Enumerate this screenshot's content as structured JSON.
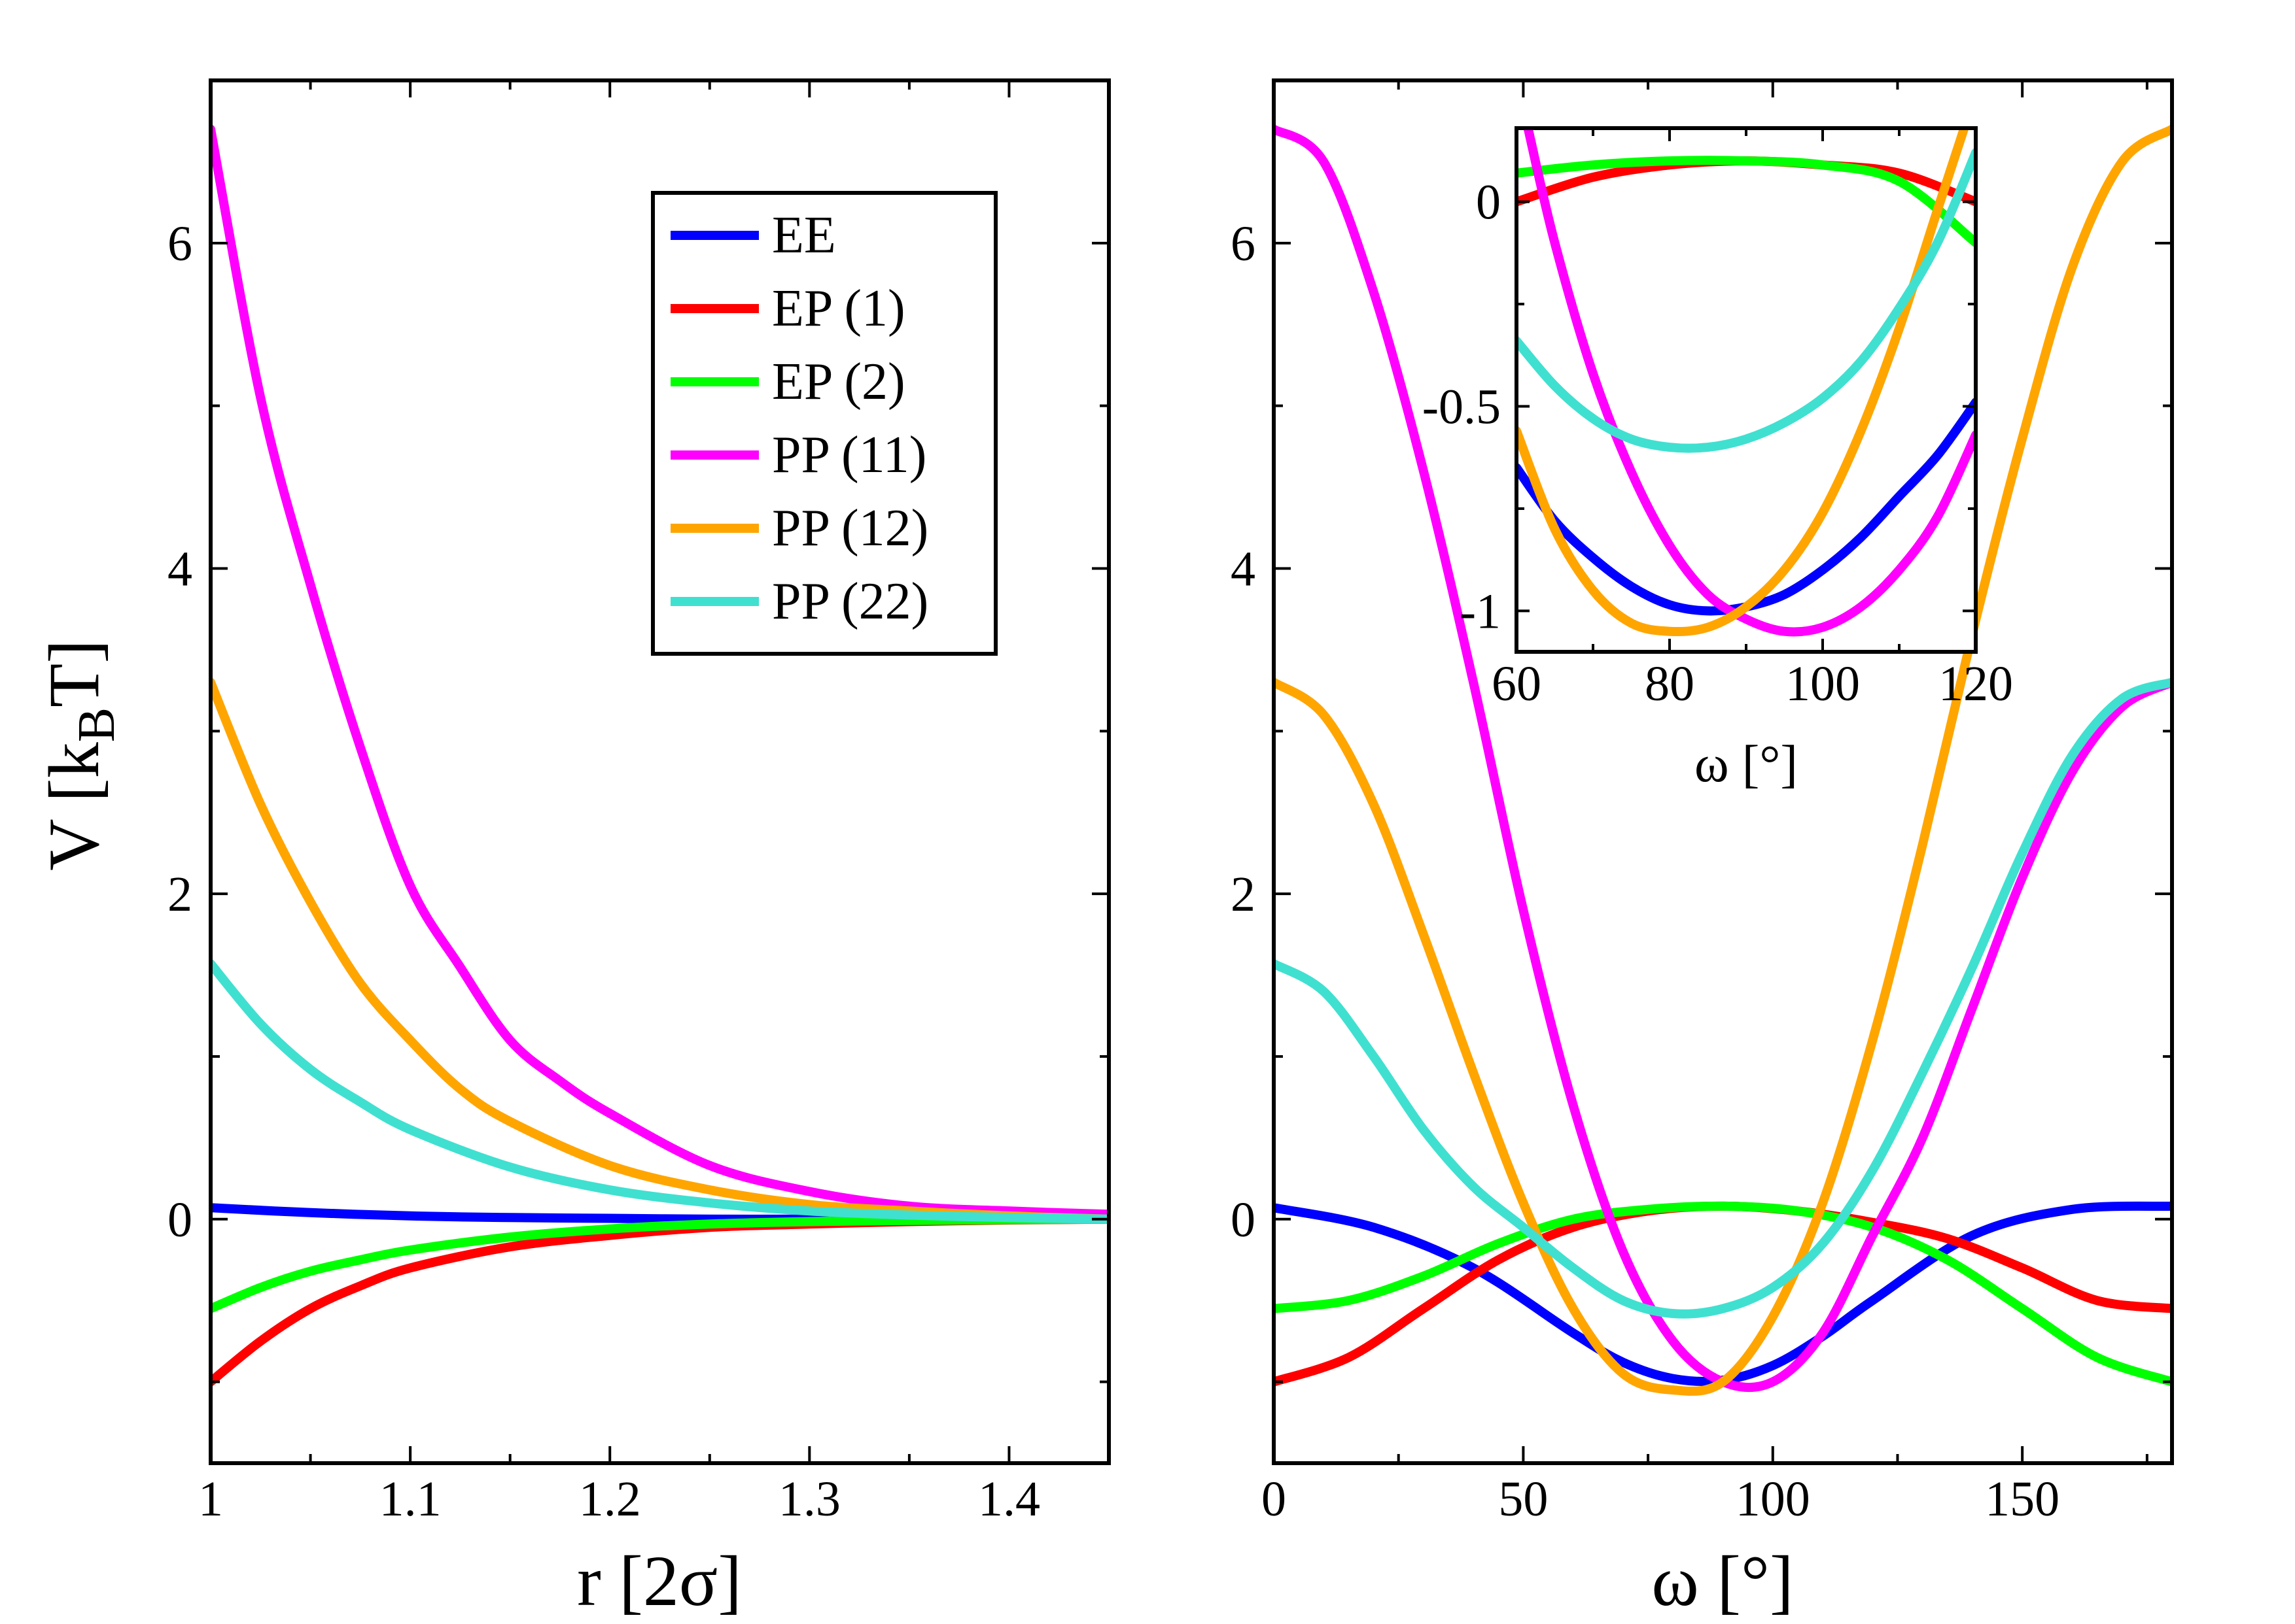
{
  "chart_data": [
    {
      "type": "line",
      "id": "left",
      "xlabel": "r [2σ]",
      "ylabel_main": "V [k",
      "ylabel_sub": "B",
      "ylabel_end": "T]",
      "xlim": [
        1.0,
        1.45
      ],
      "ylim": [
        -1.5,
        7.0
      ],
      "xticks": [
        1.0,
        1.1,
        1.2,
        1.3,
        1.4
      ],
      "xtick_labels": [
        "1",
        "1.1",
        "1.2",
        "1.3",
        "1.4"
      ],
      "yticks": [
        0,
        2,
        4,
        6
      ],
      "ytick_labels": [
        "0",
        "2",
        "4",
        "6"
      ],
      "legend": {
        "position": "top-right",
        "entries": [
          {
            "name": "EE",
            "color": "#0000ff"
          },
          {
            "name": "EP (1)",
            "color": "#ff0000"
          },
          {
            "name": "EP (2)",
            "color": "#00ff00"
          },
          {
            "name": "PP (11)",
            "color": "#ff00ff"
          },
          {
            "name": "PP (12)",
            "color": "#ffa500"
          },
          {
            "name": "PP (22)",
            "color": "#40e0d0"
          }
        ]
      },
      "series": [
        {
          "name": "EE",
          "color": "#0000ff",
          "x": [
            1.0,
            1.05,
            1.1,
            1.15,
            1.2,
            1.25,
            1.3,
            1.35,
            1.4,
            1.45
          ],
          "values": [
            0.07,
            0.04,
            0.02,
            0.01,
            0.005,
            0.0,
            0.0,
            0.0,
            0.0,
            0.0
          ]
        },
        {
          "name": "EP (1)",
          "color": "#ff0000",
          "x": [
            1.0,
            1.025,
            1.05,
            1.075,
            1.1,
            1.15,
            1.2,
            1.25,
            1.3,
            1.35,
            1.4,
            1.45
          ],
          "values": [
            -1.0,
            -0.75,
            -0.55,
            -0.41,
            -0.3,
            -0.17,
            -0.1,
            -0.05,
            -0.03,
            -0.015,
            -0.005,
            0.0
          ]
        },
        {
          "name": "EP (2)",
          "color": "#00ff00",
          "x": [
            1.0,
            1.025,
            1.05,
            1.075,
            1.1,
            1.15,
            1.2,
            1.25,
            1.3,
            1.35,
            1.4,
            1.45
          ],
          "values": [
            -0.55,
            -0.42,
            -0.32,
            -0.25,
            -0.19,
            -0.11,
            -0.06,
            -0.03,
            -0.015,
            -0.008,
            -0.003,
            0.0
          ]
        },
        {
          "name": "PP (11)",
          "color": "#ff00ff",
          "x": [
            1.0,
            1.025,
            1.05,
            1.075,
            1.1,
            1.125,
            1.15,
            1.175,
            1.2,
            1.25,
            1.3,
            1.35,
            1.4,
            1.45
          ],
          "values": [
            6.7,
            5.05,
            3.9,
            2.9,
            2.05,
            1.55,
            1.1,
            0.85,
            0.65,
            0.33,
            0.17,
            0.08,
            0.05,
            0.03
          ]
        },
        {
          "name": "PP (12)",
          "color": "#ffa500",
          "x": [
            1.0,
            1.025,
            1.05,
            1.075,
            1.1,
            1.125,
            1.15,
            1.2,
            1.25,
            1.3,
            1.35,
            1.4,
            1.45
          ],
          "values": [
            3.3,
            2.55,
            1.95,
            1.45,
            1.1,
            0.8,
            0.6,
            0.33,
            0.18,
            0.09,
            0.05,
            0.02,
            0.0
          ]
        },
        {
          "name": "PP (22)",
          "color": "#40e0d0",
          "x": [
            1.0,
            1.025,
            1.05,
            1.075,
            1.1,
            1.15,
            1.2,
            1.25,
            1.3,
            1.35,
            1.4,
            1.45
          ],
          "values": [
            1.57,
            1.2,
            0.92,
            0.72,
            0.55,
            0.32,
            0.18,
            0.1,
            0.05,
            0.025,
            0.01,
            0.0
          ]
        }
      ]
    },
    {
      "type": "line",
      "id": "right",
      "xlabel": "ω [°]",
      "xlim": [
        0,
        180
      ],
      "ylim": [
        -1.5,
        7.0
      ],
      "xticks": [
        0,
        50,
        100,
        150
      ],
      "xtick_labels": [
        "0",
        "50",
        "100",
        "150"
      ],
      "yticks": [
        0,
        2,
        4,
        6
      ],
      "ytick_labels": [
        "0",
        "2",
        "4",
        "6"
      ],
      "series": [
        {
          "name": "EE",
          "color": "#0000ff",
          "x": [
            0,
            20,
            40,
            60,
            70,
            80,
            90,
            100,
            110,
            120,
            140,
            160,
            180
          ],
          "values": [
            0.07,
            -0.05,
            -0.3,
            -0.7,
            -0.88,
            -0.98,
            -0.99,
            -0.9,
            -0.72,
            -0.5,
            -0.1,
            0.06,
            0.08
          ]
        },
        {
          "name": "EP (1)",
          "color": "#ff0000",
          "x": [
            0,
            15,
            30,
            45,
            60,
            75,
            90,
            105,
            120,
            135,
            150,
            165,
            180
          ],
          "values": [
            -1.0,
            -0.85,
            -0.55,
            -0.25,
            -0.05,
            0.05,
            0.08,
            0.05,
            -0.02,
            -0.12,
            -0.3,
            -0.5,
            -0.55
          ]
        },
        {
          "name": "EP (2)",
          "color": "#00ff00",
          "x": [
            0,
            15,
            30,
            45,
            60,
            75,
            90,
            105,
            120,
            135,
            150,
            165,
            180
          ],
          "values": [
            -0.55,
            -0.5,
            -0.35,
            -0.15,
            0.0,
            0.06,
            0.08,
            0.05,
            -0.05,
            -0.25,
            -0.55,
            -0.85,
            -1.0
          ]
        },
        {
          "name": "PP (11)",
          "color": "#ff00ff",
          "x": [
            0,
            10,
            20,
            30,
            40,
            50,
            60,
            70,
            80,
            90,
            100,
            110,
            120,
            130,
            140,
            150,
            160,
            170,
            180
          ],
          "values": [
            6.7,
            6.5,
            5.7,
            4.6,
            3.3,
            1.9,
            0.7,
            -0.2,
            -0.75,
            -1.0,
            -1.0,
            -0.7,
            -0.1,
            0.5,
            1.3,
            2.1,
            2.75,
            3.15,
            3.3
          ]
        },
        {
          "name": "PP (12)",
          "color": "#ffa500",
          "x": [
            0,
            10,
            20,
            30,
            40,
            50,
            60,
            70,
            80,
            90,
            100,
            110,
            120,
            130,
            140,
            150,
            160,
            170,
            180
          ],
          "values": [
            3.3,
            3.1,
            2.55,
            1.75,
            0.9,
            0.1,
            -0.55,
            -0.95,
            -1.05,
            -1.0,
            -0.6,
            0.1,
            1.1,
            2.3,
            3.6,
            4.8,
            5.85,
            6.5,
            6.7
          ]
        },
        {
          "name": "PP (22)",
          "color": "#40e0d0",
          "x": [
            0,
            10,
            20,
            30,
            40,
            50,
            60,
            70,
            80,
            90,
            100,
            110,
            120,
            130,
            140,
            150,
            160,
            170,
            180
          ],
          "values": [
            1.57,
            1.4,
            1.0,
            0.55,
            0.2,
            -0.05,
            -0.3,
            -0.5,
            -0.58,
            -0.55,
            -0.42,
            -0.15,
            0.3,
            0.9,
            1.55,
            2.25,
            2.85,
            3.2,
            3.3
          ]
        }
      ]
    },
    {
      "type": "line",
      "id": "inset",
      "xlabel": "ω [°]",
      "xlim": [
        60,
        120
      ],
      "ylim": [
        -1.1,
        0.18
      ],
      "xticks": [
        60,
        80,
        100,
        120
      ],
      "xtick_labels": [
        "60",
        "80",
        "100",
        "120"
      ],
      "yticks": [
        -1.0,
        -0.5,
        0.0
      ],
      "ytick_labels": [
        "-1",
        "-0.5",
        "0"
      ],
      "series": [
        {
          "name": "EE",
          "color": "#0000ff",
          "x": [
            60,
            65,
            70,
            75,
            80,
            85,
            90,
            95,
            100,
            105,
            110,
            115,
            120
          ],
          "values": [
            -0.65,
            -0.78,
            -0.87,
            -0.94,
            -0.985,
            -1.0,
            -0.99,
            -0.96,
            -0.9,
            -0.82,
            -0.72,
            -0.62,
            -0.49
          ]
        },
        {
          "name": "EP (1)",
          "color": "#ff0000",
          "x": [
            60,
            70,
            80,
            90,
            100,
            110,
            120
          ],
          "values": [
            0.0,
            0.06,
            0.09,
            0.1,
            0.09,
            0.07,
            0.0
          ]
        },
        {
          "name": "EP (2)",
          "color": "#00ff00",
          "x": [
            60,
            70,
            80,
            90,
            100,
            110,
            120
          ],
          "values": [
            0.07,
            0.09,
            0.1,
            0.1,
            0.09,
            0.05,
            -0.1
          ]
        },
        {
          "name": "PP (11)",
          "color": "#ff00ff",
          "x": [
            61.5,
            65,
            70,
            75,
            80,
            85,
            90,
            95,
            100,
            105,
            110,
            115,
            120
          ],
          "values": [
            0.18,
            -0.1,
            -0.42,
            -0.66,
            -0.84,
            -0.96,
            -1.02,
            -1.05,
            -1.04,
            -0.99,
            -0.9,
            -0.77,
            -0.57
          ]
        },
        {
          "name": "PP (12)",
          "color": "#ffa500",
          "x": [
            60,
            65,
            70,
            75,
            80,
            85,
            90,
            95,
            100,
            105,
            110,
            115,
            118.5
          ],
          "values": [
            -0.56,
            -0.8,
            -0.95,
            -1.03,
            -1.05,
            -1.04,
            -0.99,
            -0.9,
            -0.76,
            -0.56,
            -0.31,
            -0.02,
            0.18
          ]
        },
        {
          "name": "PP (22)",
          "color": "#40e0d0",
          "x": [
            60,
            65,
            70,
            75,
            80,
            85,
            90,
            95,
            100,
            105,
            110,
            115,
            120
          ],
          "values": [
            -0.34,
            -0.45,
            -0.53,
            -0.58,
            -0.6,
            -0.6,
            -0.58,
            -0.54,
            -0.48,
            -0.39,
            -0.26,
            -0.1,
            0.12
          ]
        }
      ]
    }
  ]
}
